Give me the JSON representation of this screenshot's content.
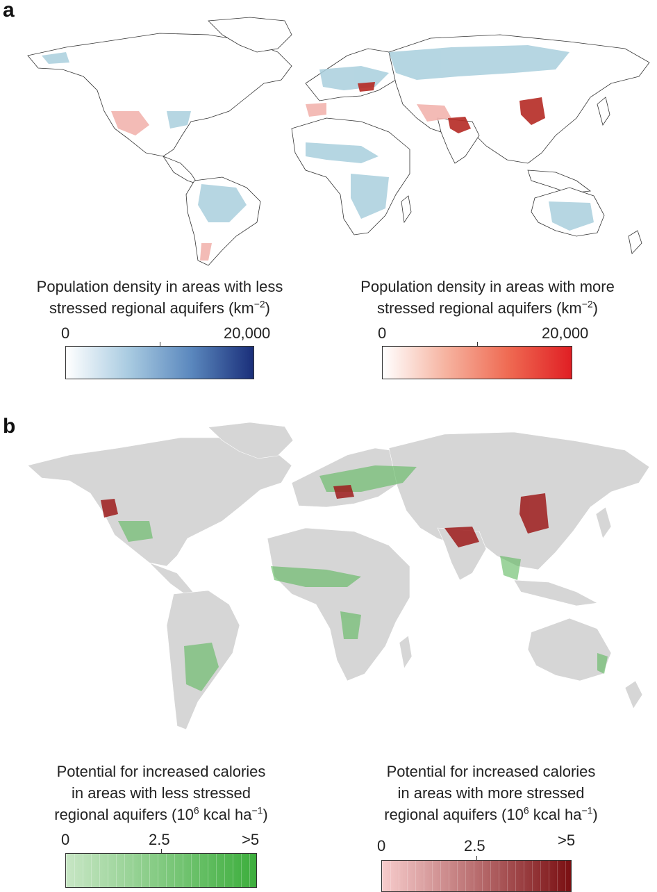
{
  "panels": [
    {
      "letter": "a"
    },
    {
      "letter": "b"
    }
  ],
  "panel_a": {
    "legend_less": {
      "title_line1": "Population density in areas with less",
      "title_line2": "stressed regional aquifers (km",
      "title_exp": "−2",
      "title_close": ")",
      "tick_min": "0",
      "tick_max": "20,000",
      "range": [
        0,
        20000
      ],
      "colors": [
        "#ffffff",
        "#a9cbe1",
        "#5b88be",
        "#1a2f7a"
      ]
    },
    "legend_more": {
      "title_line1": "Population density in areas with more",
      "title_line2": "stressed regional aquifers (km",
      "title_exp": "−2",
      "title_close": ")",
      "tick_min": "0",
      "tick_max": "20,000",
      "range": [
        0,
        20000
      ],
      "colors": [
        "#ffffff",
        "#f6b3a0",
        "#ef6a52",
        "#e01f24"
      ]
    }
  },
  "panel_b": {
    "legend_less": {
      "title_line1": "Potential for increased calories",
      "title_line2": "in areas with less stressed",
      "title_line3_pre": "regional aquifers (10",
      "title_line3_exp1": "6",
      "title_line3_mid": " kcal ha",
      "title_line3_exp2": "−1",
      "title_line3_close": ")",
      "tick_min": "0",
      "tick_mid": "2.5",
      "tick_max": ">5",
      "range": [
        0,
        5
      ],
      "colors": [
        "#c8e6c5",
        "#3cae3c"
      ]
    },
    "legend_more": {
      "title_line1": "Potential for increased calories",
      "title_line2": "in areas with more stressed",
      "title_line3_pre": "regional aquifers (10",
      "title_line3_exp1": "6",
      "title_line3_mid": " kcal ha",
      "title_line3_exp2": "−1",
      "title_line3_close": ")",
      "tick_min": "0",
      "tick_mid": "2.5",
      "tick_max": ">5",
      "range": [
        0,
        5
      ],
      "colors": [
        "#f7cccc",
        "#7a0f12"
      ]
    }
  },
  "map_colors": {
    "land_outline": "#333333",
    "land_grey": "#d6d6d6",
    "less_stressed_blue": "#a9cfdd",
    "more_stressed_red": "#f2b4ae",
    "hotspot_red": "#b52a24",
    "calorie_green": "#5cb85c",
    "calorie_red": "#9e1c1c"
  }
}
